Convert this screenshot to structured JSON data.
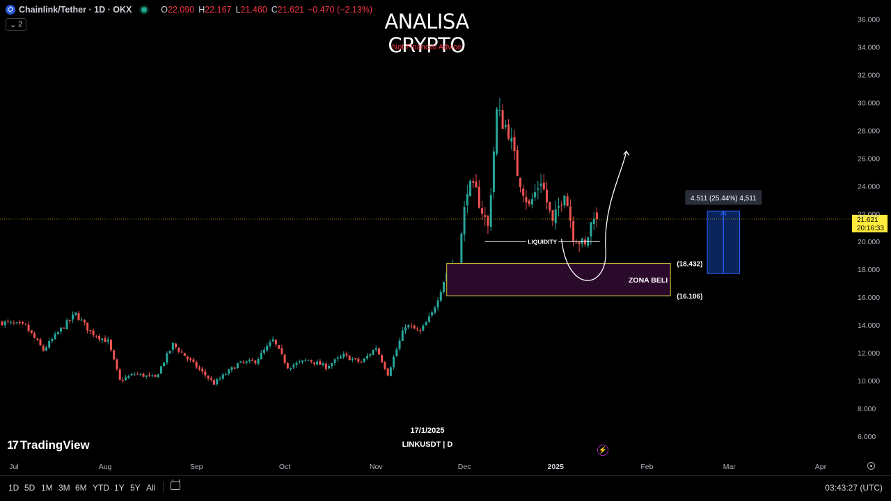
{
  "header": {
    "symbol": "Chainlink/Tether · 1D · OKX",
    "o_key": "O",
    "o_val": "22.090",
    "h_key": "H",
    "h_val": "22.167",
    "l_key": "L",
    "l_val": "21.460",
    "c_key": "C",
    "c_val": "21.621",
    "change": "−0.470 (−2.13%)",
    "collapse_count": "2"
  },
  "overlay": {
    "title": "ANALISA CRYPTO",
    "subtitle": "Not Financial Advice",
    "date_stamp": "17/1/2025",
    "symbol_stamp": "LINKUSDT | D",
    "logo_text": "TradingView",
    "logo_mark": "17"
  },
  "toolbar": {
    "ranges": [
      "1D",
      "5D",
      "1M",
      "3M",
      "6M",
      "YTD",
      "1Y",
      "5Y",
      "All"
    ],
    "clock": "03:43:27 (UTC)"
  },
  "colors": {
    "up": "#26a69a",
    "down": "#ef5350",
    "zone_fill": "#2a0a2a",
    "zone_border": "#d6c63c",
    "measure_fill": "#0d2a6b",
    "measure_line": "#2962ff",
    "price_label_bg": "#ffeb3b",
    "price_line": "#f0b90b"
  },
  "chart_data": {
    "type": "candlestick",
    "y_axis": {
      "range": [
        5.2,
        37.0
      ],
      "ticks": [
        "6.000",
        "8.000",
        "10.000",
        "12.000",
        "14.000",
        "16.000",
        "18.000",
        "20.000",
        "22.000",
        "24.000",
        "26.000",
        "28.000",
        "30.000",
        "32.000",
        "34.000",
        "36.000"
      ]
    },
    "x_axis": {
      "ticks": [
        {
          "label": "Jul",
          "day": 4
        },
        {
          "label": "Aug",
          "day": 35
        },
        {
          "label": "Sep",
          "day": 66
        },
        {
          "label": "Oct",
          "day": 96
        },
        {
          "label": "Nov",
          "day": 127
        },
        {
          "label": "Dec",
          "day": 157
        },
        {
          "label": "2025",
          "day": 188
        },
        {
          "label": "Feb",
          "day": 219
        },
        {
          "label": "Mar",
          "day": 247
        },
        {
          "label": "Apr",
          "day": 278
        }
      ]
    },
    "last_price": "21.621",
    "countdown": "20:16:33",
    "series": [
      {
        "x": 0,
        "y": 14.2
      },
      {
        "x": 8,
        "y": 13.9
      },
      {
        "x": 14,
        "y": 12.2
      },
      {
        "x": 20,
        "y": 13.7
      },
      {
        "x": 25,
        "y": 14.8
      },
      {
        "x": 30,
        "y": 13.5
      },
      {
        "x": 36,
        "y": 12.8
      },
      {
        "x": 40,
        "y": 10.0
      },
      {
        "x": 45,
        "y": 10.5
      },
      {
        "x": 52,
        "y": 10.2
      },
      {
        "x": 58,
        "y": 12.6
      },
      {
        "x": 66,
        "y": 11.0
      },
      {
        "x": 72,
        "y": 9.8
      },
      {
        "x": 80,
        "y": 11.2
      },
      {
        "x": 86,
        "y": 11.4
      },
      {
        "x": 92,
        "y": 12.9
      },
      {
        "x": 97,
        "y": 11.0
      },
      {
        "x": 104,
        "y": 11.5
      },
      {
        "x": 110,
        "y": 11.0
      },
      {
        "x": 116,
        "y": 11.8
      },
      {
        "x": 122,
        "y": 11.3
      },
      {
        "x": 127,
        "y": 12.4
      },
      {
        "x": 131,
        "y": 10.5
      },
      {
        "x": 137,
        "y": 14.0
      },
      {
        "x": 142,
        "y": 13.5
      },
      {
        "x": 146,
        "y": 14.8
      },
      {
        "x": 151,
        "y": 17.8
      },
      {
        "x": 155,
        "y": 18.6
      },
      {
        "x": 158,
        "y": 24.0
      },
      {
        "x": 161,
        "y": 23.5
      },
      {
        "x": 165,
        "y": 21.0
      },
      {
        "x": 168,
        "y": 29.3
      },
      {
        "x": 172,
        "y": 28.0
      },
      {
        "x": 175,
        "y": 25.0
      },
      {
        "x": 179,
        "y": 22.5
      },
      {
        "x": 183,
        "y": 24.5
      },
      {
        "x": 187,
        "y": 21.2
      },
      {
        "x": 191,
        "y": 23.8
      },
      {
        "x": 194,
        "y": 20.5
      },
      {
        "x": 198,
        "y": 19.6
      },
      {
        "x": 201,
        "y": 22.1
      },
      {
        "x": 202,
        "y": 21.621
      }
    ],
    "annotations": [
      {
        "type": "zone",
        "label": "ZONA BELI",
        "top": 18.432,
        "bottom": 16.106,
        "top_label": "(18.432)",
        "bottom_label": "(16.106)"
      },
      {
        "type": "level",
        "label": "LIQUIDITY",
        "value": 20.0
      },
      {
        "type": "measure",
        "label": "4.511 (25.44%) 4,511",
        "from": 17.7,
        "to": 22.2
      },
      {
        "type": "projection",
        "from": 20.2,
        "low": 17.7,
        "to": 26.5
      }
    ]
  }
}
